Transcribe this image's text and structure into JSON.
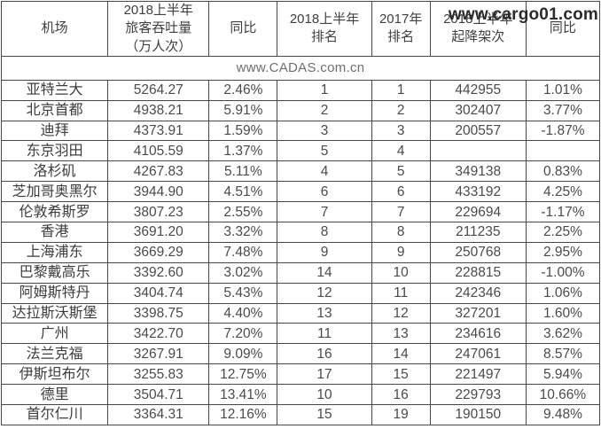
{
  "watermarks": {
    "cargo": "www.cargo01.com",
    "cadas": "www.CADAS.com.cn"
  },
  "colors": {
    "border": "#474747",
    "header_text": "#3f3f3f",
    "body_text": "#4a4a4a",
    "cadas_watermark": "#6e6e6e",
    "cargo_watermark": "#2b2b2b",
    "background": "#ffffff"
  },
  "chart_data": {
    "type": "table",
    "title": "",
    "columns": [
      "机场",
      "2018上半年\n旅客吞吐量\n（万人次）",
      "同比",
      "2018上半年\n排名",
      "2017年\n排名",
      "2018上半年\n起降架次",
      "同比"
    ],
    "rows": [
      [
        "亚特兰大",
        "5264.27",
        "2.46%",
        "1",
        "1",
        "442955",
        "1.01%"
      ],
      [
        "北京首都",
        "4938.21",
        "5.91%",
        "2",
        "2",
        "302407",
        "3.77%"
      ],
      [
        "迪拜",
        "4373.91",
        "1.59%",
        "3",
        "3",
        "200557",
        "-1.87%"
      ],
      [
        "东京羽田",
        "4105.59",
        "1.37%",
        "5",
        "4",
        "",
        ""
      ],
      [
        "洛杉矶",
        "4267.83",
        "5.11%",
        "4",
        "5",
        "349138",
        "0.83%"
      ],
      [
        "芝加哥奥黑尔",
        "3944.90",
        "4.51%",
        "6",
        "6",
        "433192",
        "4.25%"
      ],
      [
        "伦敦希斯罗",
        "3807.23",
        "2.55%",
        "7",
        "7",
        "229694",
        "-1.17%"
      ],
      [
        "香港",
        "3691.20",
        "3.32%",
        "8",
        "8",
        "211235",
        "2.25%"
      ],
      [
        "上海浦东",
        "3669.29",
        "7.48%",
        "9",
        "9",
        "250768",
        "2.95%"
      ],
      [
        "巴黎戴高乐",
        "3392.60",
        "3.02%",
        "14",
        "10",
        "228815",
        "-1.00%"
      ],
      [
        "阿姆斯特丹",
        "3404.74",
        "5.43%",
        "12",
        "11",
        "242346",
        "1.06%"
      ],
      [
        "达拉斯沃斯堡",
        "3398.75",
        "4.40%",
        "13",
        "12",
        "327201",
        "1.60%"
      ],
      [
        "广州",
        "3422.70",
        "7.20%",
        "11",
        "13",
        "234616",
        "3.62%"
      ],
      [
        "法兰克福",
        "3267.91",
        "9.09%",
        "16",
        "14",
        "247061",
        "8.57%"
      ],
      [
        "伊斯坦布尔",
        "3255.83",
        "12.75%",
        "17",
        "15",
        "221497",
        "5.94%"
      ],
      [
        "德里",
        "3504.71",
        "13.41%",
        "10",
        "16",
        "229793",
        "10.66%"
      ],
      [
        "首尔仁川",
        "3364.31",
        "12.16%",
        "15",
        "19",
        "190150",
        "9.48%"
      ]
    ]
  }
}
